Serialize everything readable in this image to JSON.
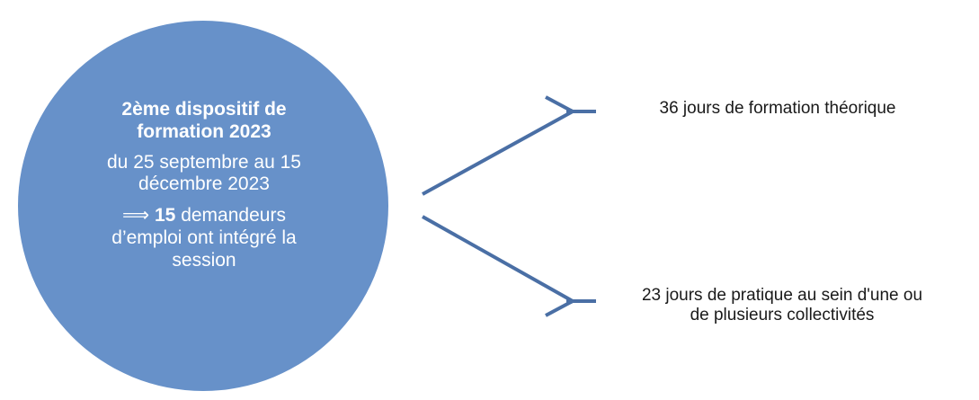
{
  "circle": {
    "title": "2ème dispositif de formation 2023",
    "dates": "du 25 septembre au 15 décembre 2023",
    "result_arrow": "⟹",
    "result_count": "15",
    "result_text": "demandeurs d’emploi ont intégré la session",
    "fill_color": "#6791c9"
  },
  "branches": [
    {
      "label": "36 jours de formation théorique"
    },
    {
      "label_line1": "23 jours de pratique au sein d'une ou",
      "label_line2": "de plusieurs collectivités"
    }
  ],
  "line_color": "#4a6fa5"
}
